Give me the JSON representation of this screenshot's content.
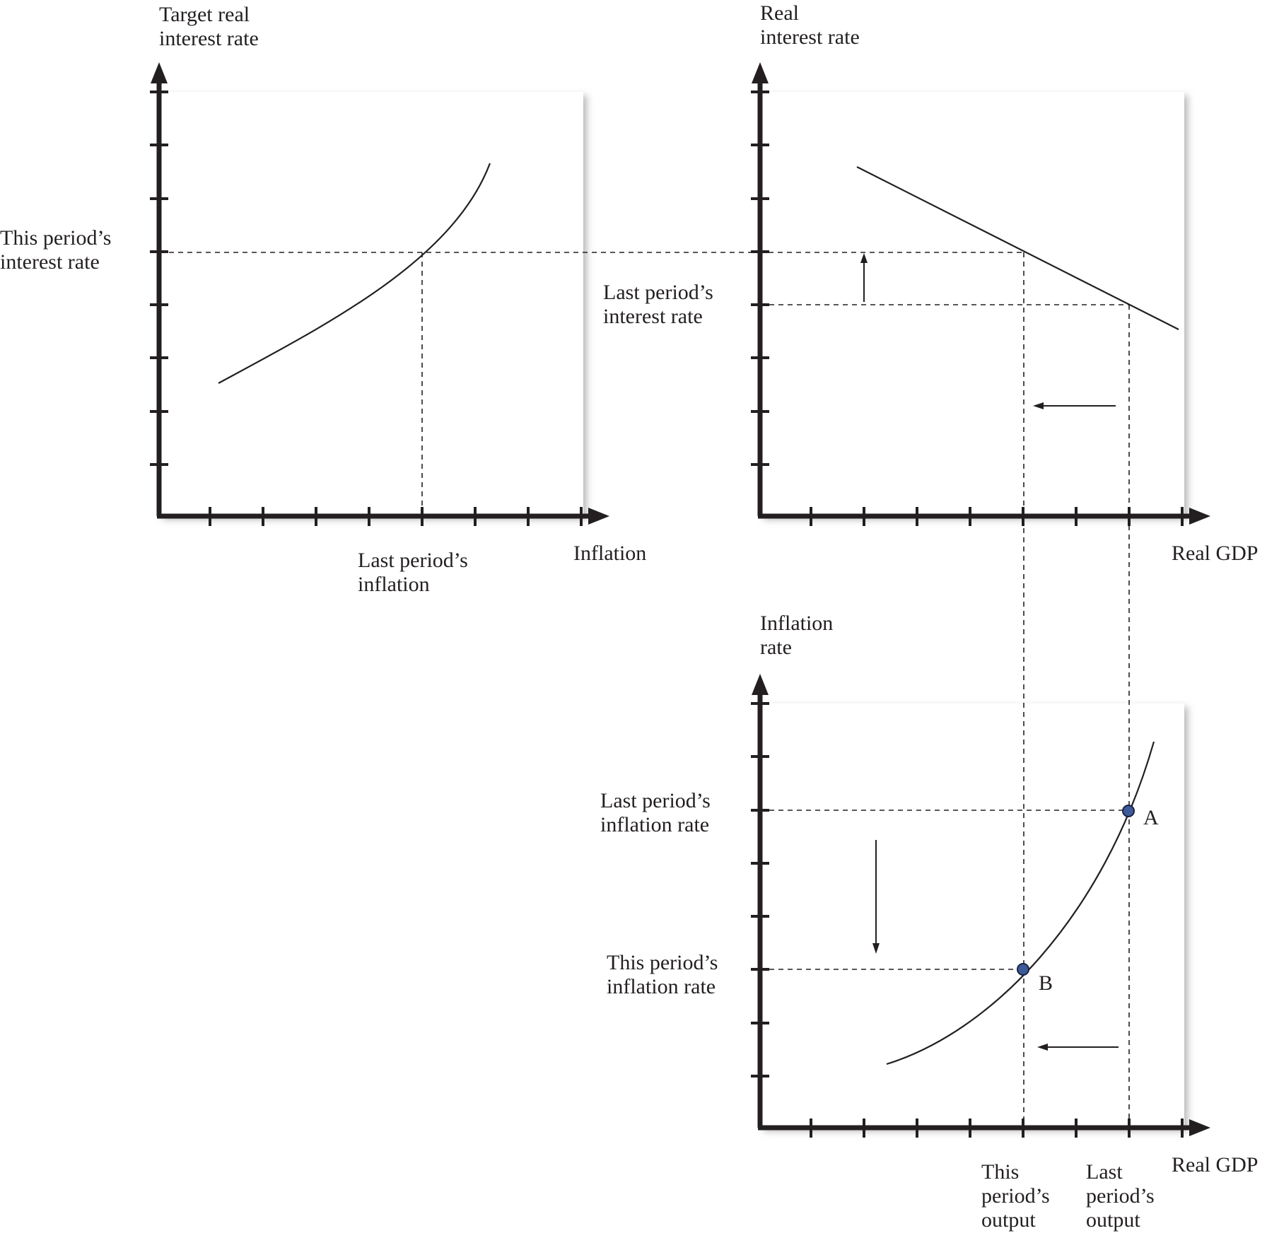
{
  "colors": {
    "ink": "#231f20",
    "panel_fill": "#ffffff",
    "panel_shadow": "#c8c8c8",
    "point_fill": "#3d5a99"
  },
  "panels": {
    "monetary_rule": {
      "y_axis_label": [
        "Target real",
        "interest rate"
      ],
      "x_axis_label": "Inflation",
      "y_marker_label": [
        "This period’s",
        "interest rate"
      ],
      "x_marker_label": [
        "Last period’s",
        "inflation"
      ]
    },
    "aggregate_expenditure": {
      "y_axis_label": [
        "Real",
        "interest rate"
      ],
      "x_axis_label": "Real GDP",
      "y_marker_label": [
        "Last period’s",
        "interest rate"
      ]
    },
    "price_adjustment": {
      "y_axis_label": [
        "Inflation",
        "rate"
      ],
      "x_axis_label": "Real GDP",
      "y_marker_upper_label": [
        "Last period’s",
        "inflation rate"
      ],
      "y_marker_lower_label": [
        "This period’s",
        "inflation rate"
      ],
      "x_marker_left_label": [
        "This",
        "period’s",
        "output"
      ],
      "x_marker_right_label": [
        "Last",
        "period’s",
        "output"
      ],
      "points": [
        {
          "id": "A",
          "label": "A"
        },
        {
          "id": "B",
          "label": "B"
        }
      ]
    }
  }
}
